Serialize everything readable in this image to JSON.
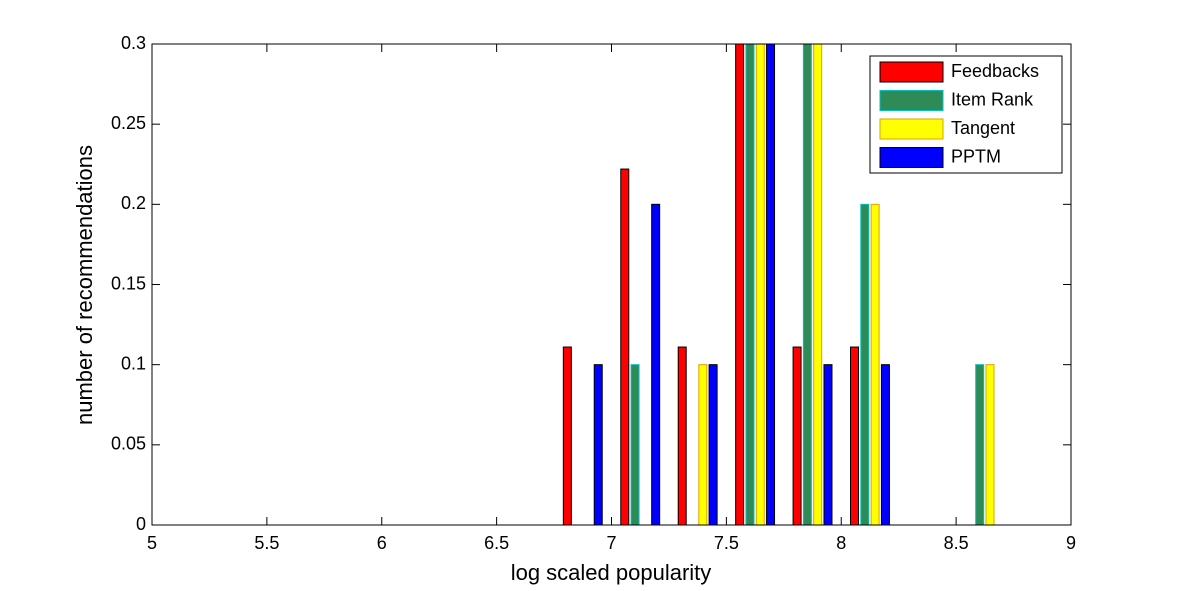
{
  "chart_data": {
    "type": "bar",
    "x": [
      5.125,
      5.375,
      5.625,
      5.875,
      6.125,
      6.375,
      6.625,
      6.875,
      7.125,
      7.375,
      7.625,
      7.875,
      8.125,
      8.375,
      8.625,
      8.875
    ],
    "series": [
      {
        "name": "Feedbacks",
        "color": "#ff0000",
        "values": [
          0,
          0,
          0,
          0,
          0,
          0,
          0,
          0.111,
          0.222,
          0.111,
          0.3,
          0.111,
          0.111,
          0,
          0,
          0
        ]
      },
      {
        "name": "Item Rank",
        "color": "#2e8b57",
        "values": [
          0,
          0,
          0,
          0,
          0,
          0,
          0,
          0,
          0.1,
          0,
          0.3,
          0.3,
          0.2,
          0,
          0.1,
          0
        ]
      },
      {
        "name": "Tangent",
        "color": "#ffff00",
        "values": [
          0,
          0,
          0,
          0,
          0,
          0,
          0,
          0,
          0,
          0.1,
          0.3,
          0.3,
          0.2,
          0,
          0.1,
          0
        ]
      },
      {
        "name": "PPTM",
        "color": "#0000ff",
        "values": [
          0,
          0,
          0,
          0,
          0,
          0,
          0,
          0.1,
          0.2,
          0.1,
          0.3,
          0.1,
          0.1,
          0,
          0,
          0
        ]
      }
    ],
    "xlabel": "log scaled popularity",
    "ylabel": "number of recommendations",
    "xlim": [
      5,
      9
    ],
    "xticks": [
      5,
      5.5,
      6,
      6.5,
      7,
      7.5,
      8,
      8.5,
      9
    ],
    "ylim": [
      0,
      0.3
    ],
    "yticks": [
      0,
      0.05,
      0.1,
      0.15,
      0.2,
      0.25,
      0.3
    ],
    "legend": "upper right",
    "grid": false
  }
}
